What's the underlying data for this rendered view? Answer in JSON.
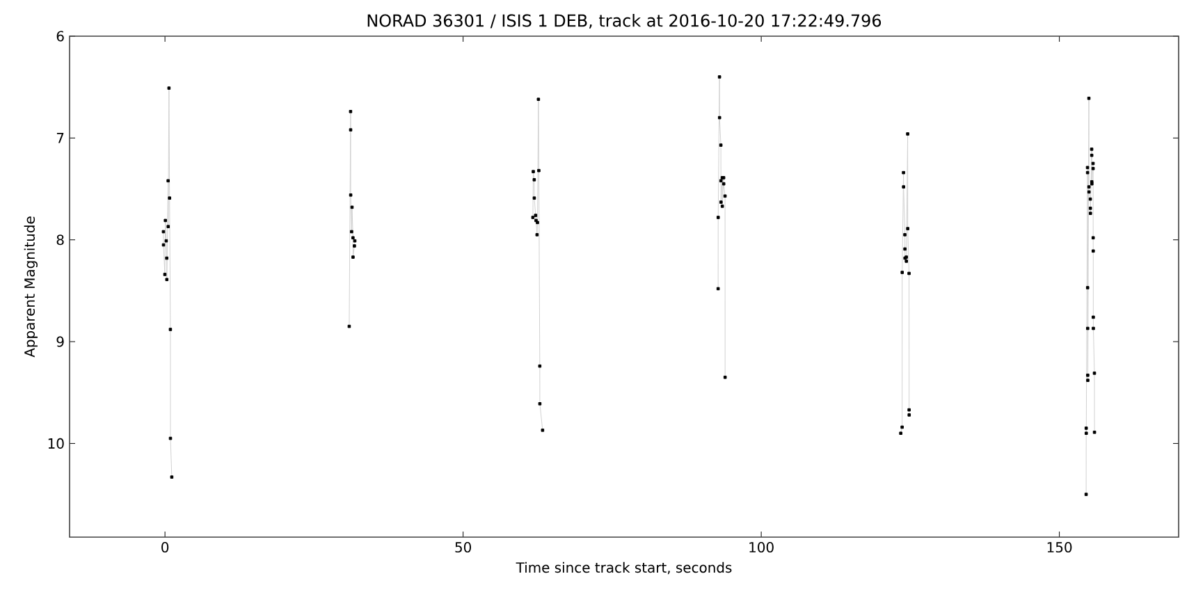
{
  "chart_data": {
    "type": "line",
    "title": "NORAD 36301 / ISIS 1 DEB, track at 2016-10-20 17:22:49.796",
    "xlabel": "Time since track start, seconds",
    "ylabel": "Apparent Magnitude",
    "xlim": [
      -16,
      170
    ],
    "ylim": [
      10.92,
      6
    ],
    "xticks": [
      0,
      50,
      100,
      150
    ],
    "yticks": [
      6,
      7,
      8,
      9,
      10
    ],
    "marker": "square",
    "line_style": "solid",
    "series": [
      {
        "color": "#000000",
        "x": [
          -0.26,
          -0.25,
          -0.02,
          0.07,
          0.21,
          0.3,
          0.31,
          0.53,
          0.54,
          0.67,
          0.77,
          0.91,
          0.92,
          1.14,
          16,
          30.9,
          31.13,
          31.14,
          31.15,
          31.3,
          31.37,
          31.53,
          31.54,
          31.77,
          31.84,
          46,
          61.7,
          61.77,
          61.93,
          61.94,
          62.16,
          62.23,
          62.4,
          62.47,
          62.63,
          62.7,
          62.86,
          62.87,
          63.33,
          78,
          92.77,
          92.78,
          93.0,
          93.01,
          93.23,
          93.24,
          93.25,
          93.46,
          93.47,
          93.7,
          93.71,
          93.93,
          93.94,
          108,
          123.4,
          123.63,
          123.64,
          123.86,
          123.87,
          124.09,
          124.1,
          124.11,
          124.33,
          124.34,
          124.56,
          124.57,
          124.79,
          124.8,
          124.81,
          140,
          154.49,
          154.5,
          154.51,
          154.72,
          154.73,
          154.74,
          154.75,
          154.76,
          154.77,
          154.95,
          154.96,
          154.97,
          155.19,
          155.2,
          155.21,
          155.42,
          155.43,
          155.44,
          155.45,
          155.65,
          155.66,
          155.67,
          155.68,
          155.69,
          155.7,
          155.88,
          155.89
        ],
        "values": [
          7.92,
          8.05,
          8.34,
          7.81,
          8.01,
          8.18,
          8.39,
          7.42,
          7.87,
          6.51,
          7.59,
          8.88,
          9.95,
          10.33,
          null,
          8.85,
          6.74,
          6.92,
          7.56,
          7.92,
          7.68,
          7.98,
          8.17,
          8.06,
          8.01,
          null,
          7.78,
          7.33,
          7.41,
          7.59,
          7.76,
          7.81,
          7.95,
          7.83,
          6.62,
          7.32,
          9.24,
          9.61,
          9.87,
          null,
          8.48,
          7.78,
          6.4,
          6.8,
          7.07,
          7.42,
          7.63,
          7.39,
          7.67,
          7.39,
          7.45,
          7.57,
          9.35,
          null,
          9.9,
          9.84,
          8.32,
          7.34,
          7.48,
          7.95,
          8.09,
          8.18,
          8.17,
          8.21,
          6.96,
          7.89,
          8.33,
          9.67,
          9.72,
          null,
          10.5,
          9.85,
          9.9,
          7.29,
          7.34,
          8.47,
          8.87,
          9.33,
          9.38,
          6.61,
          7.48,
          7.53,
          7.6,
          7.69,
          7.74,
          7.11,
          7.17,
          7.43,
          7.45,
          7.25,
          7.3,
          7.98,
          8.11,
          8.76,
          8.87,
          9.31,
          9.89
        ]
      }
    ]
  }
}
